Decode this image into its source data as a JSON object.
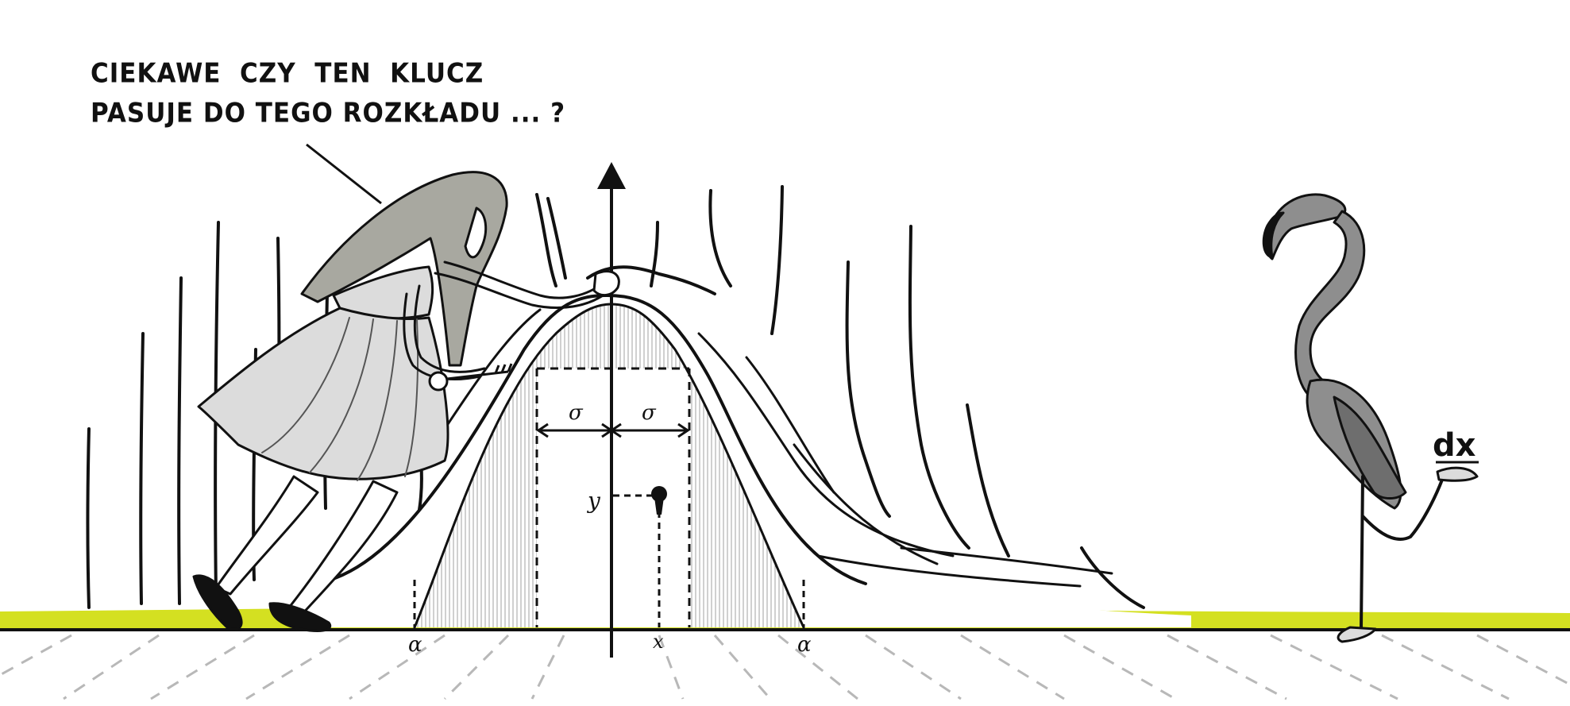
{
  "speech_bubble": {
    "line1": "CIEKAWE  CZY  TEN  KLUCZ",
    "line2": "PASUJE DO TEGO ROZKŁADU ... ?"
  },
  "labels": {
    "sigma_left": "σ",
    "sigma_right": "σ",
    "y_label": "y",
    "x_label": "x",
    "alpha_left": "α",
    "alpha_right": "α",
    "dx_tag": "dx"
  },
  "colors": {
    "ground": "#d4e021",
    "hair": "#a8a8a0",
    "dress": "#dcdcdc",
    "flamingo": "#8e8e8e",
    "ink": "#111111"
  },
  "icons": {
    "key": "key-icon",
    "keyhole": "keyhole-icon"
  }
}
